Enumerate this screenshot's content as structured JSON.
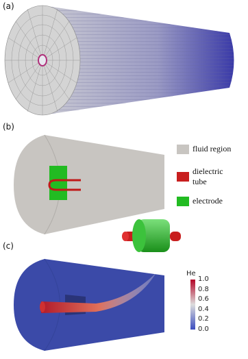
{
  "panels": [
    {
      "label": "(a)"
    },
    {
      "label": "(b)",
      "legend": [
        "fluid region",
        "dielectric tube",
        "electrode"
      ]
    },
    {
      "label": "(c)",
      "colorbar": {
        "title": "He",
        "ticks": [
          "1.0",
          "0.8",
          "0.6",
          "0.4",
          "0.2",
          "0.0"
        ]
      }
    }
  ]
}
